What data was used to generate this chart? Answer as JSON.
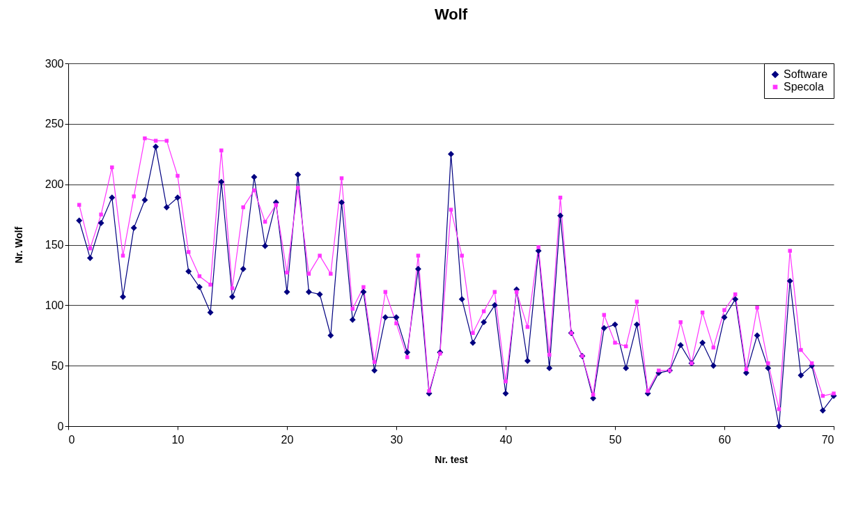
{
  "chart_data": {
    "type": "line",
    "title": "Wolf",
    "xlabel": "Nr. test",
    "ylabel": "Nr. Wolf",
    "x": [
      1,
      2,
      3,
      4,
      5,
      6,
      7,
      8,
      9,
      10,
      11,
      12,
      13,
      14,
      15,
      16,
      17,
      18,
      19,
      20,
      21,
      22,
      23,
      24,
      25,
      26,
      27,
      28,
      29,
      30,
      31,
      32,
      33,
      34,
      35,
      36,
      37,
      38,
      39,
      40,
      41,
      42,
      43,
      44,
      45,
      46,
      47,
      48,
      49,
      50,
      51,
      52,
      53,
      54,
      55,
      56,
      57,
      58,
      59,
      60,
      61,
      62,
      63,
      64,
      65,
      66,
      67,
      68,
      69,
      70
    ],
    "series": [
      {
        "name": "Software",
        "color": "#000080",
        "marker": "diamond",
        "values": [
          170,
          139,
          168,
          189,
          107,
          164,
          187,
          231,
          181,
          189,
          128,
          115,
          94,
          202,
          107,
          130,
          206,
          149,
          185,
          111,
          208,
          111,
          109,
          75,
          185,
          88,
          111,
          46,
          90,
          90,
          61,
          130,
          27,
          61,
          225,
          105,
          69,
          86,
          100,
          27,
          113,
          54,
          145,
          48,
          174,
          77,
          58,
          23,
          81,
          84,
          48,
          84,
          27,
          44,
          46,
          67,
          52,
          69,
          50,
          90,
          105,
          44,
          75,
          48,
          0,
          120,
          42,
          50,
          13,
          25
        ]
      },
      {
        "name": "Specola",
        "color": "#ff33ff",
        "marker": "square",
        "values": [
          183,
          147,
          175,
          214,
          141,
          190,
          238,
          236,
          236,
          207,
          144,
          124,
          117,
          228,
          114,
          181,
          195,
          169,
          183,
          127,
          197,
          126,
          141,
          126,
          205,
          97,
          115,
          53,
          111,
          85,
          57,
          141,
          29,
          60,
          179,
          141,
          77,
          95,
          111,
          37,
          111,
          82,
          148,
          59,
          189,
          77,
          58,
          26,
          92,
          69,
          66,
          103,
          29,
          46,
          46,
          86,
          52,
          94,
          65,
          96,
          109,
          47,
          98,
          52,
          14,
          145,
          63,
          52,
          25,
          27
        ]
      }
    ],
    "xlim": [
      0,
      70
    ],
    "xticks": [
      0,
      10,
      20,
      30,
      40,
      50,
      60,
      70
    ],
    "ylim": [
      0,
      300
    ],
    "yticks": [
      0,
      50,
      100,
      150,
      200,
      250,
      300
    ],
    "grid": "y",
    "legend": "top right",
    "line_style": "solid"
  }
}
